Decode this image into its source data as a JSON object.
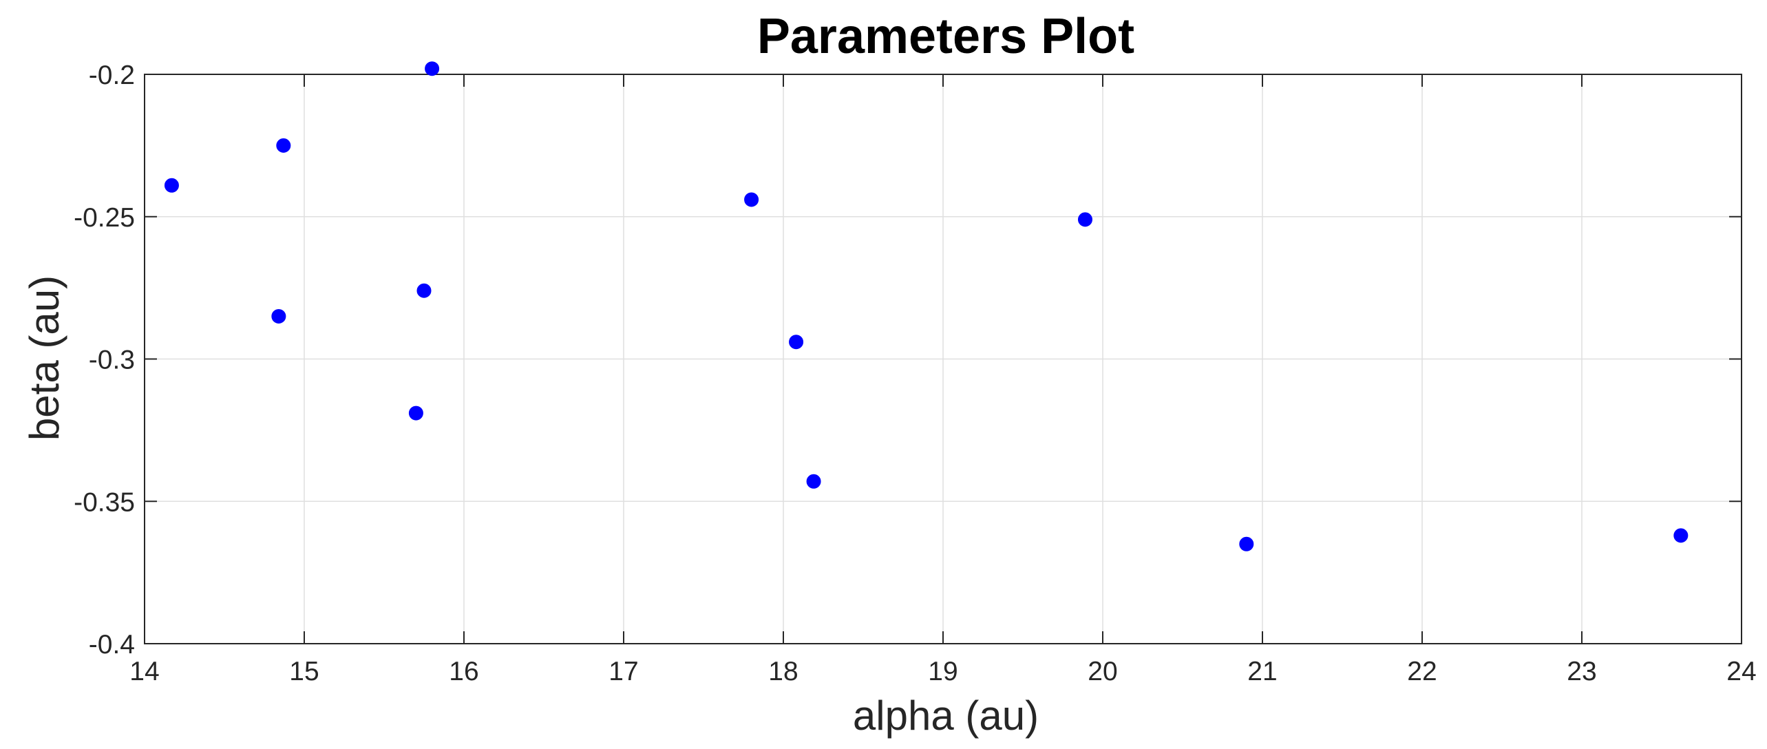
{
  "chart_data": {
    "type": "scatter",
    "title": "Parameters Plot",
    "xlabel": "alpha (au)",
    "ylabel": "beta (au)",
    "xlim": [
      14,
      24
    ],
    "ylim": [
      -0.4,
      -0.2
    ],
    "xticks": [
      14,
      15,
      16,
      17,
      18,
      19,
      20,
      21,
      22,
      23,
      24
    ],
    "yticks": [
      -0.4,
      -0.35,
      -0.3,
      -0.25,
      -0.2
    ],
    "xtick_labels": [
      "14",
      "15",
      "16",
      "17",
      "18",
      "19",
      "20",
      "21",
      "22",
      "23",
      "24"
    ],
    "ytick_labels": [
      "-0.4",
      "-0.35",
      "-0.3",
      "-0.25",
      "-0.2"
    ],
    "grid": true,
    "marker_color": "#0000ff",
    "series": [
      {
        "points": [
          {
            "x": 14.17,
            "y": -0.239
          },
          {
            "x": 14.84,
            "y": -0.285
          },
          {
            "x": 14.87,
            "y": -0.225
          },
          {
            "x": 15.7,
            "y": -0.319
          },
          {
            "x": 15.75,
            "y": -0.276
          },
          {
            "x": 15.8,
            "y": -0.198
          },
          {
            "x": 17.8,
            "y": -0.244
          },
          {
            "x": 18.08,
            "y": -0.294
          },
          {
            "x": 18.19,
            "y": -0.343
          },
          {
            "x": 19.89,
            "y": -0.251
          },
          {
            "x": 20.9,
            "y": -0.365
          },
          {
            "x": 23.62,
            "y": -0.362
          }
        ]
      }
    ]
  }
}
